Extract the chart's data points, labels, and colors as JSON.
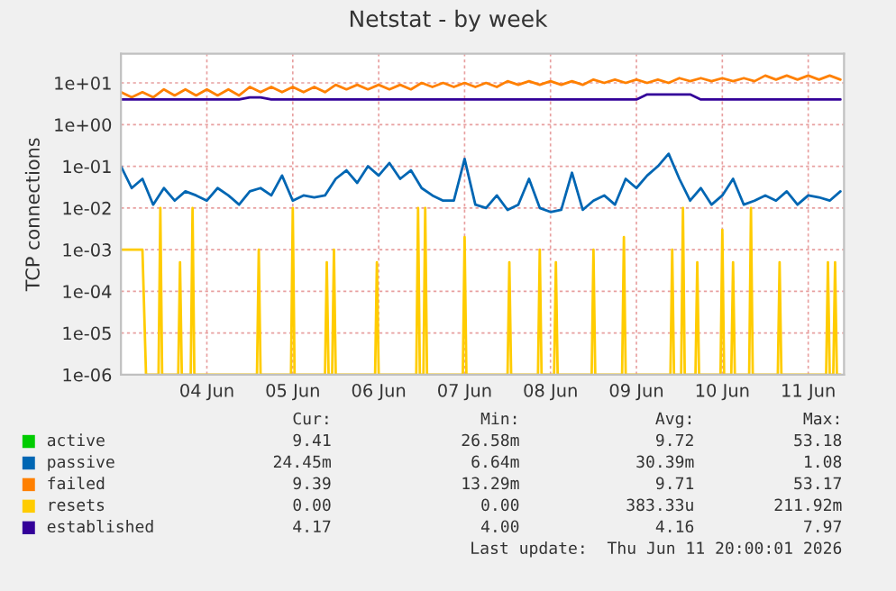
{
  "chart_data": {
    "type": "line",
    "title": "Netstat - by week",
    "ylabel": "TCP connections",
    "log": "y",
    "ylim": [
      1e-06,
      50
    ],
    "yticks": [
      {
        "value": 1e-06,
        "label": "1e-06"
      },
      {
        "value": 1e-05,
        "label": "1e-05"
      },
      {
        "value": 0.0001,
        "label": "1e-04"
      },
      {
        "value": 0.001,
        "label": "1e-03"
      },
      {
        "value": 0.01,
        "label": "1e-02"
      },
      {
        "value": 0.1,
        "label": "1e-01"
      },
      {
        "value": 1,
        "label": "1e+00"
      },
      {
        "value": 10,
        "label": "1e+01"
      }
    ],
    "xlim": [
      "2026-06-03T12:00",
      "2026-06-11T22:00"
    ],
    "xticks": [
      {
        "value": "2026-06-04T12:00",
        "label": "04 Jun"
      },
      {
        "value": "2026-06-05T12:00",
        "label": "05 Jun"
      },
      {
        "value": "2026-06-06T12:00",
        "label": "06 Jun"
      },
      {
        "value": "2026-06-07T12:00",
        "label": "07 Jun"
      },
      {
        "value": "2026-06-08T12:00",
        "label": "08 Jun"
      },
      {
        "value": "2026-06-09T12:00",
        "label": "09 Jun"
      },
      {
        "value": "2026-06-10T12:00",
        "label": "10 Jun"
      },
      {
        "value": "2026-06-11T12:00",
        "label": "11 Jun"
      }
    ],
    "grid": true,
    "legend": "bottom",
    "x": [
      "2026-06-03T12:00",
      "2026-06-03T15:00",
      "2026-06-03T18:00",
      "2026-06-03T21:00",
      "2026-06-04T00:00",
      "2026-06-04T03:00",
      "2026-06-04T06:00",
      "2026-06-04T09:00",
      "2026-06-04T12:00",
      "2026-06-04T15:00",
      "2026-06-04T18:00",
      "2026-06-04T21:00",
      "2026-06-05T00:00",
      "2026-06-05T03:00",
      "2026-06-05T06:00",
      "2026-06-05T09:00",
      "2026-06-05T12:00",
      "2026-06-05T15:00",
      "2026-06-05T18:00",
      "2026-06-05T21:00",
      "2026-06-06T00:00",
      "2026-06-06T03:00",
      "2026-06-06T06:00",
      "2026-06-06T09:00",
      "2026-06-06T12:00",
      "2026-06-06T15:00",
      "2026-06-06T18:00",
      "2026-06-06T21:00",
      "2026-06-07T00:00",
      "2026-06-07T03:00",
      "2026-06-07T06:00",
      "2026-06-07T09:00",
      "2026-06-07T12:00",
      "2026-06-07T15:00",
      "2026-06-07T18:00",
      "2026-06-07T21:00",
      "2026-06-08T00:00",
      "2026-06-08T03:00",
      "2026-06-08T06:00",
      "2026-06-08T09:00",
      "2026-06-08T12:00",
      "2026-06-08T15:00",
      "2026-06-08T18:00",
      "2026-06-08T21:00",
      "2026-06-09T00:00",
      "2026-06-09T03:00",
      "2026-06-09T06:00",
      "2026-06-09T09:00",
      "2026-06-09T12:00",
      "2026-06-09T15:00",
      "2026-06-09T18:00",
      "2026-06-09T21:00",
      "2026-06-10T00:00",
      "2026-06-10T03:00",
      "2026-06-10T06:00",
      "2026-06-10T09:00",
      "2026-06-10T12:00",
      "2026-06-10T15:00",
      "2026-06-10T18:00",
      "2026-06-10T21:00",
      "2026-06-11T00:00",
      "2026-06-11T03:00",
      "2026-06-11T06:00",
      "2026-06-11T09:00",
      "2026-06-11T12:00",
      "2026-06-11T15:00",
      "2026-06-11T18:00",
      "2026-06-11T21:00"
    ],
    "series": [
      {
        "name": "active",
        "color": "#00cc00",
        "values": [
          null,
          null,
          null,
          null,
          null,
          null,
          null,
          null,
          null,
          null,
          null,
          null,
          null,
          null,
          null,
          null,
          null,
          null,
          null,
          null,
          null,
          null,
          null,
          null,
          null,
          null,
          null,
          null,
          null,
          null,
          null,
          null,
          null,
          null,
          null,
          null,
          null,
          null,
          null,
          null,
          null,
          null,
          null,
          null,
          null,
          null,
          null,
          null,
          null,
          null,
          null,
          null,
          null,
          null,
          null,
          null,
          null,
          null,
          null,
          null,
          null,
          null,
          null,
          null,
          null,
          null,
          null,
          null
        ]
      },
      {
        "name": "passive",
        "color": "#0066b3",
        "values": [
          0.1,
          0.03,
          0.05,
          0.012,
          0.03,
          0.015,
          0.025,
          0.02,
          0.015,
          0.03,
          0.02,
          0.012,
          0.025,
          0.03,
          0.02,
          0.06,
          0.015,
          0.02,
          0.018,
          0.02,
          0.05,
          0.08,
          0.04,
          0.1,
          0.06,
          0.12,
          0.05,
          0.08,
          0.03,
          0.02,
          0.015,
          0.015,
          0.15,
          0.012,
          0.01,
          0.02,
          0.009,
          0.012,
          0.05,
          0.01,
          0.008,
          0.009,
          0.07,
          0.009,
          0.015,
          0.02,
          0.012,
          0.05,
          0.03,
          0.06,
          0.1,
          0.2,
          0.05,
          0.015,
          0.03,
          0.012,
          0.02,
          0.05,
          0.012,
          0.015,
          0.02,
          0.015,
          0.025,
          0.012,
          0.02,
          0.018,
          0.015,
          0.025
        ]
      },
      {
        "name": "failed",
        "color": "#ff8000",
        "values": [
          6,
          4.5,
          6,
          4.5,
          7,
          5,
          7,
          5,
          7,
          5,
          7,
          5,
          8,
          6,
          8,
          6,
          8,
          6,
          8,
          6,
          9,
          7,
          9,
          7,
          9,
          7,
          9,
          7,
          10,
          8,
          10,
          8,
          10,
          8,
          10,
          8,
          11,
          9,
          11,
          9,
          11,
          9,
          11,
          9,
          12,
          10,
          12,
          10,
          12,
          10,
          12,
          10,
          13,
          11,
          13,
          11,
          13,
          11,
          13,
          11,
          15,
          12,
          15,
          12,
          15,
          12,
          15,
          12
        ]
      },
      {
        "name": "resets",
        "color": "#ffcc00",
        "x": [
          "2026-06-03T12:00",
          "2026-06-03T18:00",
          "2026-06-03T19:00",
          "2026-06-03T22:30",
          "2026-06-03T23:00",
          "2026-06-03T23:30",
          "2026-06-04T04:00",
          "2026-06-04T04:30",
          "2026-06-04T05:00",
          "2026-06-04T07:30",
          "2026-06-04T08:00",
          "2026-06-04T08:30",
          "2026-06-05T02:00",
          "2026-06-05T02:30",
          "2026-06-05T03:00",
          "2026-06-05T11:30",
          "2026-06-05T12:00",
          "2026-06-05T12:30",
          "2026-06-05T21:00",
          "2026-06-05T21:30",
          "2026-06-05T22:00",
          "2026-06-05T23:00",
          "2026-06-05T23:30",
          "2026-06-06T00:00",
          "2026-06-06T11:00",
          "2026-06-06T11:30",
          "2026-06-06T12:00",
          "2026-06-06T22:30",
          "2026-06-06T23:00",
          "2026-06-06T23:30",
          "2026-06-07T00:30",
          "2026-06-07T01:00",
          "2026-06-07T01:30",
          "2026-06-07T11:30",
          "2026-06-07T12:00",
          "2026-06-07T12:30",
          "2026-06-08T00:00",
          "2026-06-08T00:30",
          "2026-06-08T01:00",
          "2026-06-08T08:30",
          "2026-06-08T09:00",
          "2026-06-08T09:30",
          "2026-06-08T13:00",
          "2026-06-08T13:30",
          "2026-06-08T14:00",
          "2026-06-08T23:30",
          "2026-06-09T00:00",
          "2026-06-09T00:30",
          "2026-06-09T08:00",
          "2026-06-09T08:30",
          "2026-06-09T09:00",
          "2026-06-09T21:30",
          "2026-06-09T22:00",
          "2026-06-09T22:30",
          "2026-06-10T00:30",
          "2026-06-10T01:00",
          "2026-06-10T01:30",
          "2026-06-10T04:30",
          "2026-06-10T05:00",
          "2026-06-10T05:30",
          "2026-06-10T11:30",
          "2026-06-10T12:00",
          "2026-06-10T12:30",
          "2026-06-10T14:30",
          "2026-06-10T15:00",
          "2026-06-10T15:30",
          "2026-06-10T19:30",
          "2026-06-10T20:00",
          "2026-06-10T20:30",
          "2026-06-11T03:30",
          "2026-06-11T04:00",
          "2026-06-11T04:30",
          "2026-06-11T17:00",
          "2026-06-11T17:30",
          "2026-06-11T18:00",
          "2026-06-11T19:00",
          "2026-06-11T19:30",
          "2026-06-11T20:00",
          "2026-06-11T21:00"
        ],
        "values": [
          0.001,
          0.001,
          1e-06,
          1e-06,
          0.01,
          1e-06,
          1e-06,
          0.0005,
          1e-06,
          1e-06,
          0.01,
          1e-06,
          1e-06,
          0.001,
          1e-06,
          1e-06,
          0.01,
          1e-06,
          1e-06,
          0.0005,
          1e-06,
          1e-06,
          0.001,
          1e-06,
          1e-06,
          0.0005,
          1e-06,
          1e-06,
          0.01,
          1e-06,
          1e-06,
          0.01,
          1e-06,
          1e-06,
          0.002,
          1e-06,
          1e-06,
          0.0005,
          1e-06,
          1e-06,
          0.001,
          1e-06,
          1e-06,
          0.0005,
          1e-06,
          1e-06,
          0.001,
          1e-06,
          1e-06,
          0.002,
          1e-06,
          1e-06,
          0.001,
          1e-06,
          1e-06,
          0.01,
          1e-06,
          1e-06,
          0.0005,
          1e-06,
          1e-06,
          0.003,
          1e-06,
          1e-06,
          0.0005,
          1e-06,
          1e-06,
          0.01,
          1e-06,
          1e-06,
          0.0005,
          1e-06,
          1e-06,
          0.0005,
          1e-06,
          1e-06,
          0.0005,
          1e-06,
          1e-06
        ]
      },
      {
        "name": "established",
        "color": "#330099",
        "values": [
          4,
          4,
          4,
          4,
          4,
          4,
          4,
          4,
          4,
          4,
          4,
          4,
          4.5,
          4.5,
          4,
          4,
          4,
          4,
          4,
          4,
          4,
          4,
          4,
          4,
          4,
          4,
          4,
          4,
          4,
          4,
          4,
          4,
          4,
          4,
          4,
          4,
          4,
          4,
          4,
          4,
          4,
          4,
          4,
          4,
          4,
          4,
          4,
          4,
          4,
          5.3,
          5.3,
          5.3,
          5.3,
          5.3,
          4,
          4,
          4,
          4,
          4,
          4,
          4,
          4,
          4,
          4,
          4,
          4,
          4,
          4
        ]
      }
    ],
    "annotations": [
      "Cur:",
      "Min:",
      "Avg:",
      "Max:",
      "9.41",
      "26.58m",
      "9.72",
      "53.18",
      "24.45m",
      "6.64m",
      "30.39m",
      "1.08",
      "9.39",
      "13.29m",
      "9.71",
      "53.17",
      "0.00",
      "0.00",
      "383.33u",
      "211.92m",
      "4.17",
      "4.00",
      "4.16",
      "7.97",
      "Last update:  Thu Jun 11 20:00:01 2026"
    ]
  }
}
